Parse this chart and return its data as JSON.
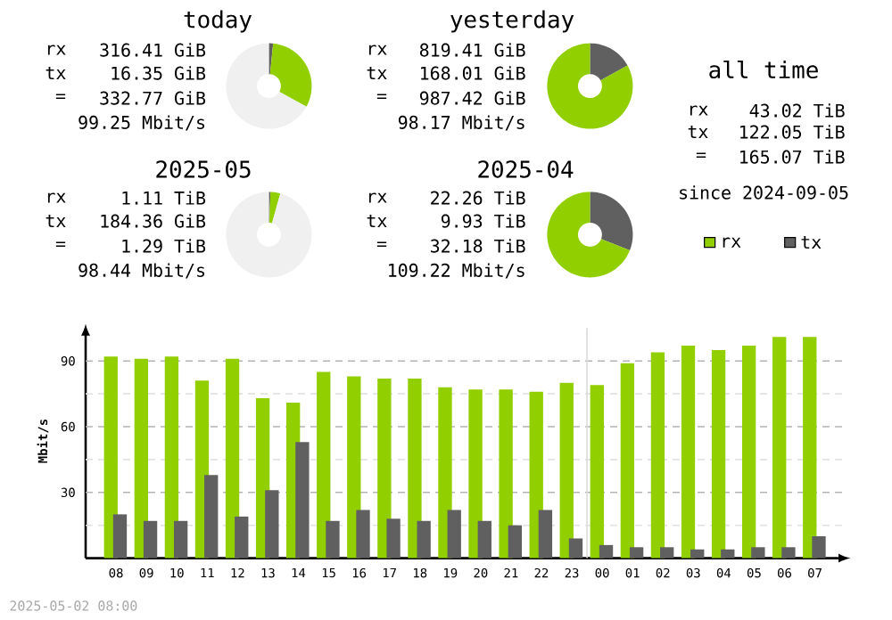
{
  "chart_data": [
    {
      "type": "donut",
      "title": "today",
      "categories": [
        null,
        null,
        null
      ],
      "values": [
        31.4,
        1.6,
        67
      ],
      "colors": [
        "#92cf00",
        "#606060",
        "#f0f0f0"
      ],
      "annotations": [
        "rx",
        "316.41 GiB",
        "tx",
        "16.35 GiB",
        "=",
        "332.77 GiB",
        "99.25 Mbit/s"
      ]
    },
    {
      "type": "donut",
      "title": "yesterday",
      "categories": [
        null,
        null
      ],
      "values": [
        83,
        17
      ],
      "colors": [
        "#92cf00",
        "#606060"
      ],
      "annotations": [
        "rx",
        "819.41 GiB",
        "tx",
        "168.01 GiB",
        "=",
        "987.42 GiB",
        "98.17 Mbit/s"
      ]
    },
    {
      "type": "other",
      "title": "all time",
      "annotations": [
        "rx",
        "43.02 TiB",
        "tx",
        "122.05 TiB",
        "=",
        "165.07 TiB",
        "since 2024-09-05"
      ]
    },
    {
      "type": "donut",
      "title": "2025-05",
      "categories": [
        null,
        null,
        null
      ],
      "values": [
        3.7,
        0.6,
        95.7
      ],
      "colors": [
        "#92cf00",
        "#606060",
        "#f0f0f0"
      ],
      "annotations": [
        "rx",
        "1.11 TiB",
        "tx",
        "184.36 GiB",
        "=",
        "1.29 TiB",
        "98.44 Mbit/s"
      ]
    },
    {
      "type": "donut",
      "title": "2025-04",
      "categories": [
        null,
        null
      ],
      "values": [
        69,
        31
      ],
      "colors": [
        "#92cf00",
        "#606060"
      ],
      "annotations": [
        "rx",
        "22.26 TiB",
        "tx",
        "9.93 TiB",
        "=",
        "32.18 TiB",
        "109.22 Mbit/s"
      ]
    },
    {
      "type": "bar",
      "ylabel": "Mbit/s",
      "categories": [
        "08",
        "09",
        "10",
        "11",
        "12",
        "13",
        "14",
        "15",
        "16",
        "17",
        "18",
        "19",
        "20",
        "21",
        "22",
        "23",
        "00",
        "01",
        "02",
        "03",
        "04",
        "05",
        "06",
        "07"
      ],
      "series": [
        {
          "name": "rx",
          "color": "#92cf00",
          "values": [
            92,
            91,
            92,
            81,
            91,
            73,
            71,
            85,
            83,
            82,
            82,
            78,
            77,
            77,
            76,
            80,
            79,
            89,
            94,
            97,
            95,
            97,
            101,
            101
          ]
        },
        {
          "name": "tx",
          "color": "#606060",
          "values": [
            20,
            17,
            17,
            38,
            19,
            31,
            53,
            17,
            22,
            18,
            17,
            22,
            17,
            15,
            22,
            9,
            6,
            5,
            5,
            4,
            4,
            5,
            5,
            10
          ]
        }
      ],
      "ylim": [
        0,
        107
      ],
      "yticks": [
        {
          "value": 15,
          "label": null
        },
        30,
        {
          "value": 45,
          "label": null
        },
        60,
        {
          "value": 75,
          "label": null
        },
        90
      ],
      "grid": "y",
      "legend": "top right",
      "ref_lines": [
        {
          "axis": "x",
          "value": "00",
          "color": "#dcdcdc"
        }
      ],
      "annotations": [
        "2025-05-02 08:00"
      ]
    }
  ]
}
